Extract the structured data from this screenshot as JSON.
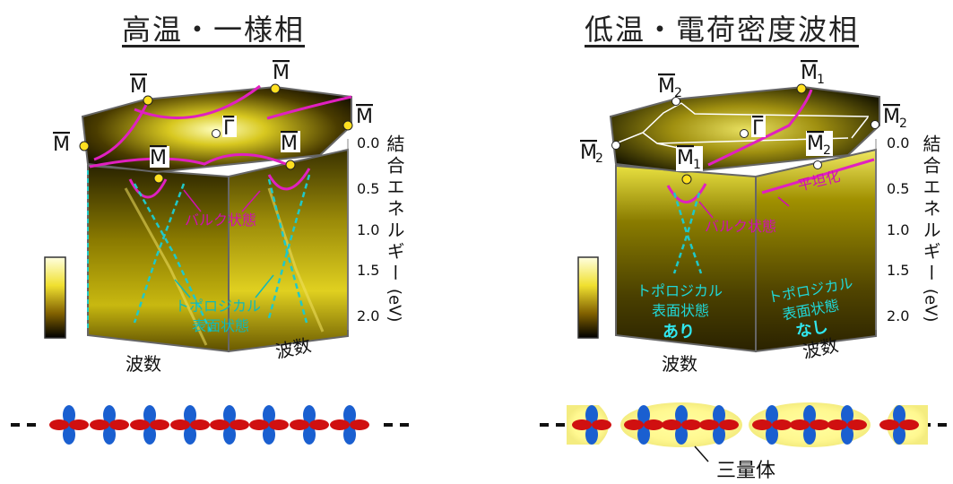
{
  "panels": {
    "left": {
      "title": "高温・一様相",
      "points": {
        "m1": "M",
        "m2": "M",
        "m3": "M",
        "m4": "M",
        "m5": "M",
        "m6": "M",
        "gamma": "Γ"
      },
      "bulk_label": "バルク状態",
      "topo_label_1": "トポロジカル",
      "topo_label_2": "表面状態",
      "axis_x1": "波数",
      "axis_x2": "波数"
    },
    "right": {
      "title": "低温・電荷密度波相",
      "points": {
        "m2a": "M",
        "m2a_sub": "2",
        "m1a": "M",
        "m1a_sub": "1",
        "m2b": "M",
        "m2b_sub": "2",
        "m2c": "M",
        "m2c_sub": "2",
        "m1b": "M",
        "m1b_sub": "1",
        "m2d": "M",
        "m2d_sub": "2",
        "gamma": "Γ"
      },
      "flat_label": "平坦化",
      "bulk_label": "バルク状態",
      "topo_a_1": "トポロジカル",
      "topo_a_2": "表面状態",
      "topo_a_3": "あり",
      "topo_b_1": "トポロジカル",
      "topo_b_2": "表面状態",
      "topo_b_3": "なし",
      "axis_x1": "波数",
      "axis_x2": "波数"
    }
  },
  "energy_axis": {
    "label": "結合エネルギー",
    "unit": "(eV)",
    "ticks": [
      "0.0",
      "0.5",
      "1.0",
      "1.5",
      "2.0"
    ]
  },
  "chains": {
    "trimer_label": "三量体"
  },
  "colors": {
    "magenta": "#e020c0",
    "cyan": "#20c8c8",
    "yellow": "#f0e020",
    "orbital_blue": "#1a5fd0",
    "orbital_red": "#d01010"
  }
}
